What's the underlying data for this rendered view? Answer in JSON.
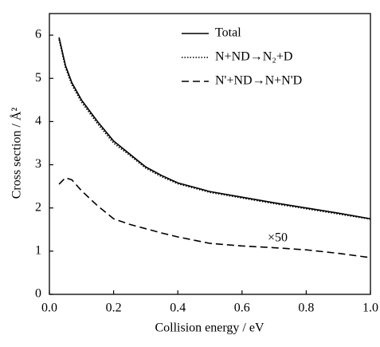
{
  "chart_data": {
    "type": "line",
    "xlabel": "Collision energy / eV",
    "ylabel": "Cross section / Å²",
    "x": [
      0.03,
      0.05,
      0.07,
      0.1,
      0.15,
      0.2,
      0.25,
      0.3,
      0.35,
      0.4,
      0.5,
      0.6,
      0.7,
      0.8,
      0.9,
      1.0
    ],
    "series": [
      {
        "name": "Total",
        "color": "#000000",
        "linestyle": "solid",
        "values": [
          5.95,
          5.3,
          4.9,
          4.5,
          4.0,
          3.55,
          3.25,
          2.95,
          2.75,
          2.58,
          2.38,
          2.25,
          2.12,
          2.0,
          1.88,
          1.75
        ]
      },
      {
        "name": "N+ND→N₂+D",
        "color": "#000000",
        "linestyle": "dotted",
        "values": [
          5.9,
          5.25,
          4.85,
          4.45,
          3.95,
          3.5,
          3.22,
          2.92,
          2.72,
          2.56,
          2.36,
          2.23,
          2.1,
          1.98,
          1.86,
          1.74
        ]
      },
      {
        "name": "N'+ND→N+N'D",
        "color": "#000000",
        "linestyle": "dashed",
        "values": [
          2.55,
          2.7,
          2.65,
          2.4,
          2.05,
          1.75,
          1.62,
          1.52,
          1.42,
          1.33,
          1.18,
          1.12,
          1.08,
          1.03,
          0.95,
          0.85
        ]
      }
    ],
    "annotation": {
      "text": "×50",
      "x": 0.68,
      "y": 1.3
    },
    "xlim": [
      0,
      1
    ],
    "ylim": [
      0,
      6.5
    ],
    "xticks": [
      {
        "value": 0,
        "label": "0.0"
      },
      {
        "value": 0.2,
        "label": "0.2"
      },
      {
        "value": 0.4,
        "label": "0.4"
      },
      {
        "value": 0.6,
        "label": "0.6"
      },
      {
        "value": 0.8,
        "label": "0.8"
      },
      {
        "value": 1,
        "label": "1.0"
      }
    ],
    "yticks": [
      0,
      1,
      2,
      3,
      4,
      5,
      6
    ],
    "legend": "upper right"
  }
}
